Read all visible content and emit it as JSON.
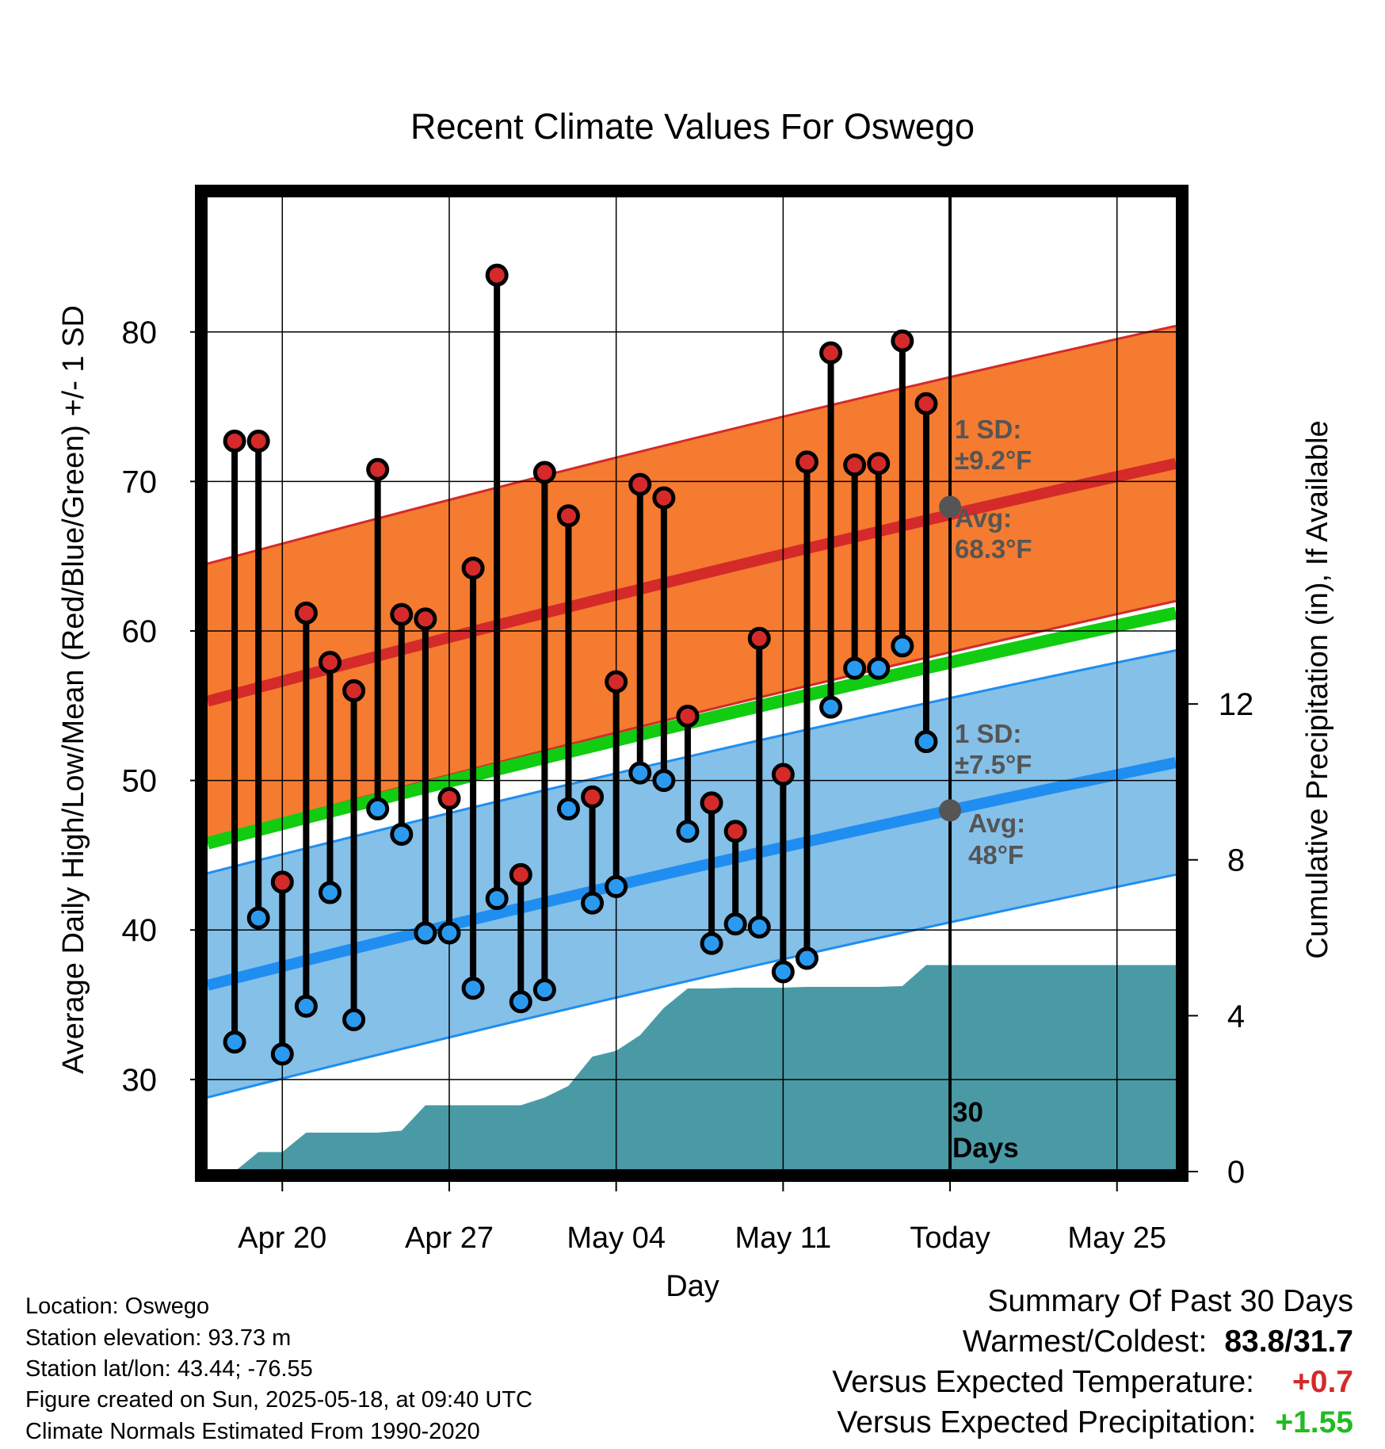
{
  "chart_data": {
    "type": "line",
    "title": "Recent Climate Values For Oswego",
    "xlabel": "Day",
    "ylabel_left": "Average Daily High/Low/Mean (Red/Blue/Green) +/- 1 SD",
    "ylabel_right": "Cumulative Precipitation (in), If Available",
    "x_tick_labels": [
      "Apr 20",
      "Apr 27",
      "May 04",
      "May 11",
      "Today",
      "May 25"
    ],
    "y_left_ticks": [
      30,
      40,
      50,
      60,
      70,
      80
    ],
    "y_left_range": [
      24,
      89
    ],
    "y_right_ticks": [
      0,
      4,
      8,
      12
    ],
    "y_right_range": [
      0,
      25
    ],
    "grid": true,
    "dates": [
      "Apr 18",
      "Apr 19",
      "Apr 20",
      "Apr 21",
      "Apr 22",
      "Apr 23",
      "Apr 24",
      "Apr 25",
      "Apr 26",
      "Apr 27",
      "Apr 28",
      "Apr 29",
      "Apr 30",
      "May 01",
      "May 02",
      "May 03",
      "May 04",
      "May 05",
      "May 06",
      "May 07",
      "May 08",
      "May 09",
      "May 10",
      "May 11",
      "May 12",
      "May 13",
      "May 14",
      "May 15",
      "May 16",
      "May 17"
    ],
    "series": [
      {
        "name": "High",
        "values": [
          72.7,
          72.7,
          43.2,
          61.2,
          57.9,
          56.0,
          70.8,
          61.1,
          60.8,
          48.8,
          64.2,
          83.8,
          43.7,
          70.6,
          67.7,
          48.9,
          56.6,
          69.8,
          68.9,
          54.3,
          48.5,
          46.6,
          59.5,
          50.4,
          71.3,
          78.6,
          71.1,
          71.2,
          79.4,
          75.2
        ]
      },
      {
        "name": "Low",
        "values": [
          32.5,
          40.8,
          31.7,
          34.9,
          42.5,
          34.0,
          48.1,
          46.4,
          39.8,
          39.8,
          36.1,
          42.1,
          35.2,
          36.0,
          48.1,
          41.8,
          42.9,
          50.5,
          50.0,
          46.6,
          39.1,
          40.4,
          40.2,
          37.2,
          38.1,
          54.9,
          57.5,
          57.5,
          59.0,
          52.6
        ]
      }
    ],
    "normals": {
      "x": [
        "Apr 17",
        "May 28"
      ],
      "high_avg": [
        55.3,
        71.2
      ],
      "high_sd": 9.2,
      "low_avg": [
        36.3,
        51.2
      ],
      "low_sd": 7.5,
      "mean_avg": [
        45.8,
        61.2
      ]
    },
    "precip_cumulative": {
      "dates": [
        "Apr 18",
        "Apr 19",
        "Apr 20",
        "Apr 21",
        "Apr 22",
        "Apr 23",
        "Apr 24",
        "Apr 25",
        "Apr 26",
        "Apr 27",
        "Apr 28",
        "Apr 29",
        "Apr 30",
        "May 01",
        "May 02",
        "May 03",
        "May 04",
        "May 05",
        "May 06",
        "May 07",
        "May 08",
        "May 09",
        "May 10",
        "May 11",
        "May 12",
        "May 13",
        "May 14",
        "May 15",
        "May 16",
        "May 17",
        "May 28"
      ],
      "values": [
        0.0,
        0.5,
        0.5,
        1.0,
        1.0,
        1.0,
        1.0,
        1.05,
        1.7,
        1.7,
        1.7,
        1.7,
        1.7,
        1.9,
        2.2,
        2.95,
        3.1,
        3.5,
        4.2,
        4.7,
        4.7,
        4.72,
        4.72,
        4.72,
        4.74,
        4.74,
        4.74,
        4.74,
        4.76,
        5.3,
        5.3
      ]
    },
    "today_label": "Today",
    "window_label": [
      "30",
      "Days"
    ],
    "annotations": {
      "high_sd": [
        "1 SD:",
        "±9.2°F"
      ],
      "high_avg": [
        "Avg:",
        "68.3°F"
      ],
      "low_sd": [
        "1 SD:",
        "±7.5°F"
      ],
      "low_avg": [
        "Avg:",
        "48°F"
      ]
    },
    "today_avg_high": 68.3,
    "today_avg_low": 48,
    "colors": {
      "high_band": "#f47b30",
      "high_line": "#d42a2a",
      "low_band": "#85c0e8",
      "low_line": "#1f8ef0",
      "mean_line": "#11cc11",
      "precip": "#4a9aa5",
      "high_dot": "#d42a2a",
      "low_dot": "#2a9af0",
      "annot": "#555555"
    }
  },
  "info": {
    "location": "Location: Oswego",
    "elevation": "Station elevation: 93.73 m",
    "latlon": "Station lat/lon: 43.44; -76.55",
    "created": "Figure created on Sun, 2025-05-18, at 09:40 UTC",
    "normals": "Climate Normals Estimated From 1990-2020"
  },
  "summary": {
    "title": "Summary Of Past 30 Days",
    "warm_cold_label": "Warmest/Coldest:",
    "warm_cold_value": "83.8/31.7",
    "temp_label": "Versus Expected Temperature:",
    "temp_value": "+0.7",
    "temp_color": "#d42a2a",
    "precip_label": "Versus Expected Precipitation:",
    "precip_value": "+1.55",
    "precip_color": "#22bb22"
  }
}
